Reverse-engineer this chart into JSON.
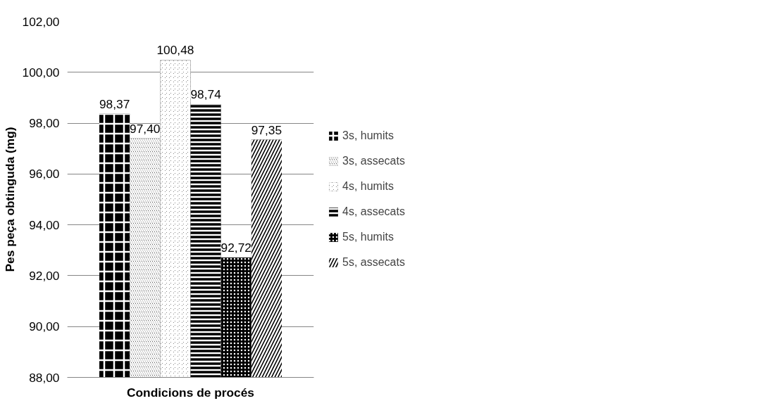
{
  "chart_data": {
    "type": "bar",
    "xlabel": "Condicions de procés",
    "ylabel": "Pes peça obtinguda (mg)",
    "categories": [
      null
    ],
    "ylim": [
      88,
      102
    ],
    "yticks": [
      {
        "value": 88,
        "label": "88,00"
      },
      {
        "value": 90,
        "label": "90,00"
      },
      {
        "value": 92,
        "label": "92,00"
      },
      {
        "value": 94,
        "label": "94,00"
      },
      {
        "value": 96,
        "label": "96,00"
      },
      {
        "value": 98,
        "label": "98,00"
      },
      {
        "value": 100,
        "label": "100,00"
      },
      {
        "value": 102,
        "label": "102,00"
      }
    ],
    "grid": "y",
    "legend": "right",
    "series": [
      {
        "name": "3s, humits",
        "color": "#000000",
        "values": [
          98.37
        ],
        "value_labels": [
          "98,37"
        ]
      },
      {
        "name": "3s, assecats",
        "color": "#000000",
        "values": [
          97.4
        ],
        "value_labels": [
          "97,40"
        ]
      },
      {
        "name": "4s, humits",
        "color": "#000000",
        "values": [
          100.48
        ],
        "value_labels": [
          "100,48"
        ]
      },
      {
        "name": "4s, assecats",
        "color": "#000000",
        "values": [
          98.74
        ],
        "value_labels": [
          "98,74"
        ]
      },
      {
        "name": "5s, humits",
        "color": "#000000",
        "values": [
          92.72
        ],
        "value_labels": [
          "92,72"
        ]
      },
      {
        "name": "5s, assecats",
        "color": "#000000",
        "values": [
          97.35
        ],
        "value_labels": [
          "97,35"
        ]
      }
    ]
  }
}
